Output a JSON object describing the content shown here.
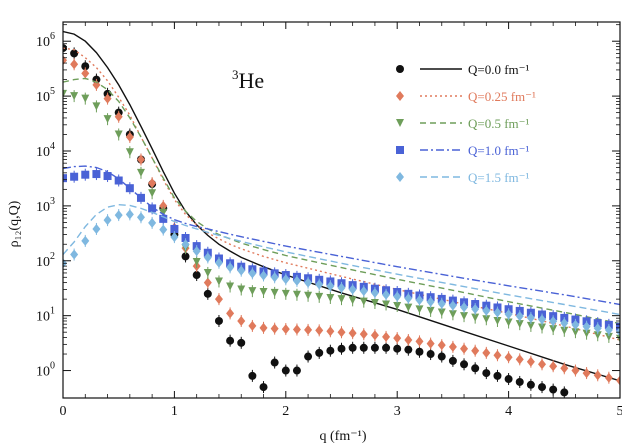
{
  "chart_data": {
    "type": "scatter",
    "annotation": {
      "prefix": "3",
      "text": "He"
    },
    "xlabel": "q (fm⁻¹)",
    "ylabel": "ρ₁₂(q,Q)",
    "xlim": [
      0,
      5
    ],
    "ylim_log10": [
      -0.5,
      6.35
    ],
    "yscale": "log",
    "x_ticks": [
      "0",
      "1",
      "2",
      "3",
      "4",
      "5"
    ],
    "y_ticks": [
      {
        "base": "10",
        "exp": "0"
      },
      {
        "base": "10",
        "exp": "1"
      },
      {
        "base": "10",
        "exp": "2"
      },
      {
        "base": "10",
        "exp": "3"
      },
      {
        "base": "10",
        "exp": "4"
      },
      {
        "base": "10",
        "exp": "5"
      },
      {
        "base": "10",
        "exp": "6"
      }
    ],
    "legend_position": "top-right",
    "series": [
      {
        "name": "Q=0.0 fm⁻¹",
        "color": "#111111",
        "marker": "circle",
        "line_dash": "solid",
        "line_x": [
          0,
          0.1,
          0.2,
          0.3,
          0.4,
          0.5,
          0.6,
          0.7,
          0.8,
          0.9,
          1.0,
          1.1,
          1.2,
          1.3,
          1.4,
          1.5,
          1.6,
          1.8,
          2.0,
          2.5,
          3.0,
          3.5,
          4.0,
          4.5,
          5.0
        ],
        "line_y": [
          1500000,
          1350000,
          1000000,
          620000,
          330000,
          160000,
          70000,
          28000,
          11000,
          4200,
          1700,
          800,
          450,
          290,
          200,
          150,
          115,
          78,
          55,
          26,
          13,
          6,
          2.8,
          1.3,
          0.65
        ],
        "points_x": [
          0,
          0.1,
          0.2,
          0.3,
          0.4,
          0.5,
          0.6,
          0.7,
          0.8,
          0.9,
          1.0,
          1.1,
          1.2,
          1.3,
          1.4,
          1.5,
          1.6,
          1.7,
          1.8,
          1.9,
          2.0,
          2.1,
          2.2,
          2.3,
          2.4,
          2.5,
          2.6,
          2.7,
          2.8,
          2.9,
          3.0,
          3.1,
          3.2,
          3.3,
          3.4,
          3.5,
          3.6,
          3.7,
          3.8,
          3.9,
          4.0,
          4.1,
          4.2,
          4.3,
          4.4,
          4.5
        ],
        "points_y": [
          750000,
          600000,
          350000,
          200000,
          110000,
          50000,
          20000,
          7000,
          2500,
          900,
          300,
          120,
          55,
          25,
          8,
          3.5,
          3.2,
          0.8,
          0.5,
          1.4,
          1.0,
          1.0,
          1.8,
          2.1,
          2.3,
          2.5,
          2.6,
          2.6,
          2.6,
          2.6,
          2.5,
          2.4,
          2.2,
          2.0,
          1.8,
          1.5,
          1.3,
          1.1,
          0.9,
          0.8,
          0.7,
          0.62,
          0.55,
          0.5,
          0.45,
          0.4
        ]
      },
      {
        "name": "Q=0.25 fm⁻¹",
        "color": "#e07a5c",
        "marker": "diamond",
        "line_dash": "2,3",
        "line_x": [
          0,
          0.1,
          0.2,
          0.3,
          0.4,
          0.5,
          0.6,
          0.7,
          0.8,
          0.9,
          1.0,
          1.1,
          1.2,
          1.3,
          1.4,
          1.5,
          1.6,
          1.8,
          2.0,
          2.5,
          3.0,
          3.5,
          4.0,
          4.5,
          5.0
        ],
        "line_y": [
          750000,
          700000,
          500000,
          330000,
          190000,
          95000,
          45000,
          18000,
          7500,
          3000,
          1300,
          700,
          450,
          320,
          250,
          200,
          165,
          120,
          92,
          52,
          30,
          18,
          11,
          6.5,
          3.6
        ],
        "points_x": [
          0,
          0.1,
          0.2,
          0.3,
          0.4,
          0.5,
          0.6,
          0.7,
          0.8,
          0.9,
          1.0,
          1.1,
          1.2,
          1.3,
          1.4,
          1.5,
          1.6,
          1.7,
          1.8,
          1.9,
          2.0,
          2.1,
          2.2,
          2.3,
          2.4,
          2.5,
          2.6,
          2.7,
          2.8,
          2.9,
          3.0,
          3.1,
          3.2,
          3.3,
          3.4,
          3.5,
          3.6,
          3.7,
          3.8,
          3.9,
          4.0,
          4.1,
          4.2,
          4.3,
          4.4,
          4.5,
          4.6,
          4.7,
          4.8,
          4.9,
          5.0
        ],
        "points_y": [
          450000,
          380000,
          260000,
          160000,
          90000,
          42000,
          18000,
          7000,
          2600,
          1000,
          400,
          170,
          80,
          40,
          20,
          11,
          8,
          6.5,
          6,
          5.8,
          5.7,
          5.6,
          5.5,
          5.4,
          5.2,
          5.0,
          4.8,
          4.6,
          4.4,
          4.1,
          3.9,
          3.6,
          3.4,
          3.1,
          2.9,
          2.7,
          2.5,
          2.3,
          2.1,
          1.9,
          1.75,
          1.6,
          1.45,
          1.3,
          1.2,
          1.1,
          1.0,
          0.9,
          0.82,
          0.74,
          0.66
        ]
      },
      {
        "name": "Q=0.5 fm⁻¹",
        "color": "#6e9e5a",
        "marker": "triangle-down",
        "line_dash": "6,4",
        "line_x": [
          0,
          0.1,
          0.2,
          0.3,
          0.4,
          0.5,
          0.6,
          0.7,
          0.8,
          0.9,
          1.0,
          1.1,
          1.2,
          1.3,
          1.4,
          1.5,
          1.6,
          1.8,
          2.0,
          2.5,
          3.0,
          3.5,
          4.0,
          4.5,
          5.0
        ],
        "line_y": [
          180000,
          200000,
          210000,
          180000,
          130000,
          80000,
          40000,
          18000,
          7500,
          3200,
          1400,
          800,
          520,
          380,
          300,
          250,
          210,
          160,
          125,
          75,
          46,
          29,
          18,
          11.5,
          7.2
        ],
        "points_x": [
          0,
          0.1,
          0.2,
          0.3,
          0.4,
          0.5,
          0.6,
          0.7,
          0.8,
          0.9,
          1.0,
          1.1,
          1.2,
          1.3,
          1.4,
          1.5,
          1.6,
          1.7,
          1.8,
          1.9,
          2.0,
          2.1,
          2.2,
          2.3,
          2.4,
          2.5,
          2.6,
          2.7,
          2.8,
          2.9,
          3.0,
          3.1,
          3.2,
          3.3,
          3.4,
          3.5,
          3.6,
          3.7,
          3.8,
          3.9,
          4.0,
          4.1,
          4.2,
          4.3,
          4.4,
          4.5,
          4.6,
          4.7,
          4.8,
          4.9,
          5.0
        ],
        "points_y": [
          110000,
          100000,
          90000,
          65000,
          38000,
          20000,
          9500,
          4000,
          1700,
          750,
          340,
          170,
          95,
          60,
          42,
          34,
          30,
          28,
          27,
          26,
          25,
          24,
          23,
          22,
          21,
          20,
          19,
          18,
          17,
          16,
          15,
          14,
          13,
          12.2,
          11.4,
          10.6,
          9.8,
          9.2,
          8.6,
          8.0,
          7.5,
          7.0,
          6.5,
          6.1,
          5.7,
          5.3,
          5.0,
          4.7,
          4.4,
          4.1,
          3.8
        ]
      },
      {
        "name": "Q=1.0 fm⁻¹",
        "color": "#4a62d6",
        "marker": "square",
        "line_dash": "8,3,2,3",
        "line_x": [
          0,
          0.1,
          0.2,
          0.3,
          0.4,
          0.5,
          0.6,
          0.7,
          0.8,
          0.9,
          1.0,
          1.1,
          1.2,
          1.3,
          1.4,
          1.5,
          1.6,
          1.8,
          2.0,
          2.5,
          3.0,
          3.5,
          4.0,
          4.5,
          5.0
        ],
        "line_y": [
          4800,
          5200,
          5300,
          5000,
          4200,
          3100,
          2100,
          1400,
          950,
          700,
          560,
          480,
          420,
          380,
          340,
          305,
          275,
          225,
          185,
          120,
          78,
          52,
          35,
          24,
          16
        ],
        "points_x": [
          0,
          0.1,
          0.2,
          0.3,
          0.4,
          0.5,
          0.6,
          0.7,
          0.8,
          0.9,
          1.0,
          1.1,
          1.2,
          1.3,
          1.4,
          1.5,
          1.6,
          1.7,
          1.8,
          1.9,
          2.0,
          2.1,
          2.2,
          2.3,
          2.4,
          2.5,
          2.6,
          2.7,
          2.8,
          2.9,
          3.0,
          3.1,
          3.2,
          3.3,
          3.4,
          3.5,
          3.6,
          3.7,
          3.8,
          3.9,
          4.0,
          4.1,
          4.2,
          4.3,
          4.4,
          4.5,
          4.6,
          4.7,
          4.8,
          4.9,
          5.0
        ],
        "points_y": [
          3200,
          3400,
          3700,
          3800,
          3500,
          2900,
          2100,
          1400,
          900,
          580,
          380,
          260,
          185,
          140,
          110,
          90,
          78,
          70,
          64,
          59,
          55,
          51,
          48,
          45,
          42,
          39,
          36,
          33.5,
          31,
          29,
          27,
          25,
          23.3,
          21.7,
          20.2,
          18.8,
          17.5,
          16.3,
          15.2,
          14.1,
          13.1,
          12.2,
          11.3,
          10.5,
          9.8,
          9.1,
          8.5,
          7.9,
          7.3,
          6.8,
          6.3
        ]
      },
      {
        "name": "Q=1.5 fm⁻¹",
        "color": "#7fb8e0",
        "marker": "diamond",
        "line_dash": "7,4",
        "line_x": [
          0,
          0.1,
          0.2,
          0.3,
          0.4,
          0.5,
          0.6,
          0.7,
          0.8,
          0.9,
          1.0,
          1.1,
          1.2,
          1.3,
          1.4,
          1.5,
          1.6,
          1.8,
          2.0,
          2.5,
          3.0,
          3.5,
          4.0,
          4.5,
          5.0
        ],
        "line_y": [
          130,
          220,
          420,
          700,
          950,
          1050,
          1020,
          900,
          760,
          630,
          520,
          440,
          380,
          330,
          290,
          255,
          225,
          180,
          145,
          90,
          57,
          37,
          24,
          16,
          10.5
        ],
        "points_x": [
          0,
          0.1,
          0.2,
          0.3,
          0.4,
          0.5,
          0.6,
          0.7,
          0.8,
          0.9,
          1.0,
          1.1,
          1.2,
          1.3,
          1.4,
          1.5,
          1.6,
          1.7,
          1.8,
          1.9,
          2.0,
          2.1,
          2.2,
          2.3,
          2.4,
          2.5,
          2.6,
          2.7,
          2.8,
          2.9,
          3.0,
          3.1,
          3.2,
          3.3,
          3.4,
          3.5,
          3.6,
          3.7,
          3.8,
          3.9,
          4.0,
          4.1,
          4.2,
          4.3,
          4.4,
          4.5,
          4.6,
          4.7,
          4.8,
          4.9,
          5.0
        ],
        "points_y": [
          90,
          130,
          230,
          380,
          550,
          680,
          700,
          620,
          490,
          370,
          270,
          200,
          150,
          115,
          92,
          76,
          66,
          59,
          54,
          50,
          46,
          43,
          40,
          37,
          34.5,
          32,
          30,
          28,
          26,
          24,
          22.3,
          20.7,
          19.2,
          17.8,
          16.5,
          15.3,
          14.2,
          13.2,
          12.3,
          11.4,
          10.6,
          9.8,
          9.1,
          8.5,
          7.9,
          7.3,
          6.8,
          6.3,
          5.9,
          5.5,
          5.1
        ]
      }
    ]
  }
}
